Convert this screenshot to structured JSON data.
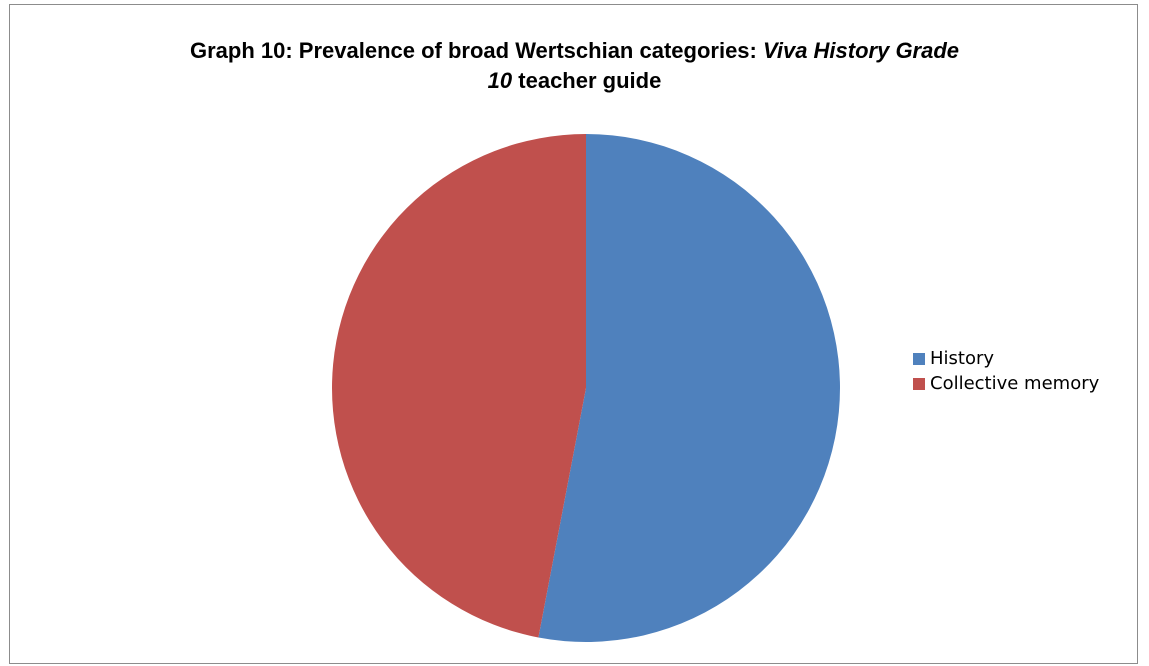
{
  "chart": {
    "title_line1_prefix": "Graph 10: Prevalence of broad Wertschian categories: ",
    "title_line1_italic": "Viva History Grade",
    "title_line2_italic": "10",
    "title_line2_suffix": " teacher guide"
  },
  "chart_data": {
    "type": "pie",
    "title": "Graph 10: Prevalence of broad Wertschian categories: Viva History Grade 10 teacher guide",
    "labels": [
      "History",
      "Collective memory"
    ],
    "values": [
      53,
      47
    ],
    "colors": [
      "#4f81bd",
      "#c0504d"
    ],
    "legend_position": "right"
  }
}
